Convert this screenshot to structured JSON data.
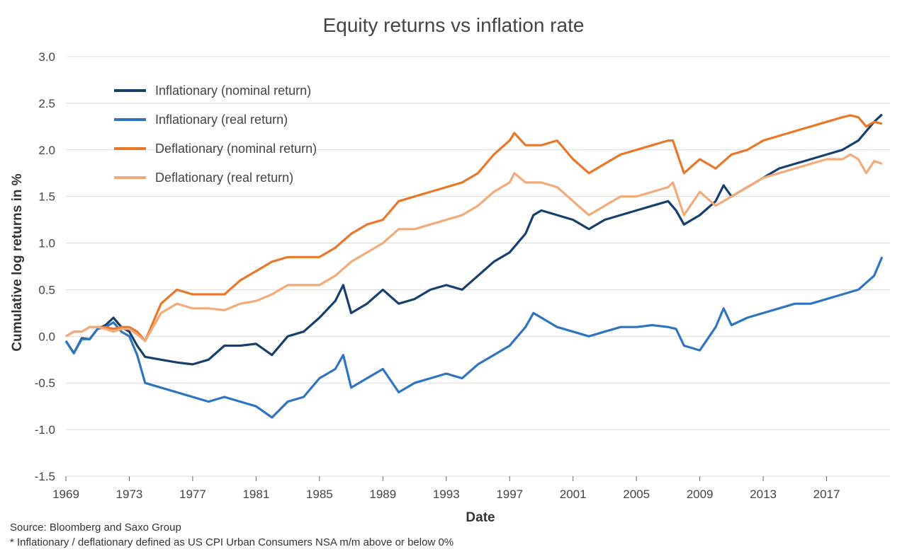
{
  "chart_data": {
    "type": "line",
    "title": "Equity returns vs inflation rate",
    "xlabel": "Date",
    "ylabel": "Cumulative log returns in %",
    "xlim": [
      1969,
      2021
    ],
    "ylim": [
      -1.5,
      3.0
    ],
    "x_ticks": [
      "1969",
      "1973",
      "1977",
      "1981",
      "1985",
      "1989",
      "1993",
      "1997",
      "2001",
      "2005",
      "2009",
      "2013",
      "2017"
    ],
    "y_ticks": [
      "-1.5",
      "-1.0",
      "-0.5",
      "0.0",
      "0.5",
      "1.0",
      "1.5",
      "2.0",
      "2.5",
      "3.0"
    ],
    "grid": "horizontal",
    "legend_position": "top-left",
    "series": [
      {
        "name": "Inflationary (nominal return)",
        "color": "#163f6e",
        "x": [
          1969,
          1969.5,
          1970,
          1970.5,
          1971,
          1971.5,
          1972,
          1972.5,
          1973,
          1973.5,
          1974,
          1975,
          1976,
          1977,
          1978,
          1979,
          1980,
          1981,
          1982,
          1983,
          1984,
          1985,
          1986,
          1986.5,
          1987,
          1988,
          1989,
          1990,
          1991,
          1992,
          1993,
          1994,
          1995,
          1996,
          1997,
          1998,
          1998.5,
          1999,
          2000,
          2001,
          2002,
          2003,
          2004,
          2005,
          2006,
          2007,
          2007.5,
          2008,
          2009,
          2010,
          2010.5,
          2011,
          2012,
          2013,
          2014,
          2015,
          2016,
          2017,
          2018,
          2019,
          2020,
          2020.5
        ],
        "values": [
          -0.05,
          -0.18,
          -0.02,
          -0.03,
          0.08,
          0.12,
          0.2,
          0.1,
          0.05,
          -0.1,
          -0.22,
          -0.25,
          -0.28,
          -0.3,
          -0.25,
          -0.1,
          -0.1,
          -0.08,
          -0.2,
          0.0,
          0.05,
          0.2,
          0.38,
          0.55,
          0.25,
          0.35,
          0.5,
          0.35,
          0.4,
          0.5,
          0.55,
          0.5,
          0.65,
          0.8,
          0.9,
          1.1,
          1.3,
          1.35,
          1.3,
          1.25,
          1.15,
          1.25,
          1.3,
          1.35,
          1.4,
          1.45,
          1.35,
          1.2,
          1.3,
          1.45,
          1.62,
          1.5,
          1.6,
          1.7,
          1.8,
          1.85,
          1.9,
          1.95,
          2.0,
          2.1,
          2.3,
          2.38
        ]
      },
      {
        "name": "Inflationary (real return)",
        "color": "#2e74c0",
        "x": [
          1969,
          1969.5,
          1970,
          1970.5,
          1971,
          1971.5,
          1972,
          1972.5,
          1973,
          1973.5,
          1974,
          1975,
          1976,
          1977,
          1978,
          1979,
          1980,
          1981,
          1982,
          1983,
          1984,
          1985,
          1986,
          1986.5,
          1987,
          1988,
          1989,
          1990,
          1991,
          1992,
          1993,
          1994,
          1995,
          1996,
          1997,
          1998,
          1998.5,
          1999,
          2000,
          2001,
          2002,
          2003,
          2004,
          2005,
          2006,
          2007,
          2007.5,
          2008,
          2009,
          2010,
          2010.5,
          2011,
          2012,
          2013,
          2014,
          2015,
          2016,
          2017,
          2018,
          2019,
          2020,
          2020.5
        ],
        "values": [
          -0.05,
          -0.18,
          -0.03,
          -0.03,
          0.08,
          0.1,
          0.15,
          0.05,
          0.0,
          -0.2,
          -0.5,
          -0.55,
          -0.6,
          -0.65,
          -0.7,
          -0.65,
          -0.7,
          -0.75,
          -0.87,
          -0.7,
          -0.65,
          -0.45,
          -0.35,
          -0.2,
          -0.55,
          -0.45,
          -0.35,
          -0.6,
          -0.5,
          -0.45,
          -0.4,
          -0.45,
          -0.3,
          -0.2,
          -0.1,
          0.1,
          0.25,
          0.2,
          0.1,
          0.05,
          0.0,
          0.05,
          0.1,
          0.1,
          0.12,
          0.1,
          0.08,
          -0.1,
          -0.15,
          0.1,
          0.3,
          0.12,
          0.2,
          0.25,
          0.3,
          0.35,
          0.35,
          0.4,
          0.45,
          0.5,
          0.65,
          0.85
        ]
      },
      {
        "name": "Deflationary (nominal return)",
        "color": "#e8772a",
        "x": [
          1969,
          1969.5,
          1970,
          1970.5,
          1971,
          1971.5,
          1972,
          1972.5,
          1973,
          1973.5,
          1974,
          1975,
          1976,
          1977,
          1978,
          1979,
          1980,
          1981,
          1982,
          1983,
          1984,
          1985,
          1986,
          1987,
          1988,
          1989,
          1990,
          1991,
          1992,
          1993,
          1994,
          1995,
          1996,
          1997,
          1997.3,
          1998,
          1999,
          2000,
          2001,
          2002,
          2003,
          2004,
          2005,
          2006,
          2007,
          2007.3,
          2007.7,
          2008,
          2009,
          2010,
          2011,
          2012,
          2013,
          2014,
          2015,
          2016,
          2017,
          2018,
          2018.5,
          2019,
          2019.5,
          2020,
          2020.5
        ],
        "values": [
          0.0,
          0.05,
          0.05,
          0.1,
          0.1,
          0.1,
          0.08,
          0.1,
          0.1,
          0.05,
          -0.05,
          0.35,
          0.5,
          0.45,
          0.45,
          0.45,
          0.6,
          0.7,
          0.8,
          0.85,
          0.85,
          0.85,
          0.95,
          1.1,
          1.2,
          1.25,
          1.45,
          1.5,
          1.55,
          1.6,
          1.65,
          1.75,
          1.95,
          2.1,
          2.18,
          2.05,
          2.05,
          2.1,
          1.9,
          1.75,
          1.85,
          1.95,
          2.0,
          2.05,
          2.1,
          2.1,
          1.9,
          1.75,
          1.9,
          1.8,
          1.95,
          2.0,
          2.1,
          2.15,
          2.2,
          2.25,
          2.3,
          2.35,
          2.37,
          2.35,
          2.25,
          2.3,
          2.28
        ]
      },
      {
        "name": "Deflationary (real return)",
        "color": "#f2ab78",
        "x": [
          1969,
          1969.5,
          1970,
          1970.5,
          1971,
          1971.5,
          1972,
          1972.5,
          1973,
          1973.5,
          1974,
          1975,
          1976,
          1977,
          1978,
          1979,
          1980,
          1981,
          1982,
          1983,
          1984,
          1985,
          1986,
          1987,
          1988,
          1989,
          1990,
          1991,
          1992,
          1993,
          1994,
          1995,
          1996,
          1997,
          1997.3,
          1998,
          1999,
          2000,
          2001,
          2002,
          2003,
          2004,
          2005,
          2006,
          2007,
          2007.3,
          2007.7,
          2008,
          2009,
          2010,
          2011,
          2012,
          2013,
          2014,
          2015,
          2016,
          2017,
          2018,
          2018.5,
          2019,
          2019.5,
          2020,
          2020.5
        ],
        "values": [
          0.0,
          0.05,
          0.05,
          0.1,
          0.1,
          0.08,
          0.05,
          0.08,
          0.08,
          0.02,
          -0.05,
          0.25,
          0.35,
          0.3,
          0.3,
          0.28,
          0.35,
          0.38,
          0.45,
          0.55,
          0.55,
          0.55,
          0.65,
          0.8,
          0.9,
          1.0,
          1.15,
          1.15,
          1.2,
          1.25,
          1.3,
          1.4,
          1.55,
          1.65,
          1.75,
          1.65,
          1.65,
          1.6,
          1.45,
          1.3,
          1.4,
          1.5,
          1.5,
          1.55,
          1.6,
          1.65,
          1.45,
          1.3,
          1.55,
          1.4,
          1.5,
          1.6,
          1.7,
          1.75,
          1.8,
          1.85,
          1.9,
          1.9,
          1.95,
          1.9,
          1.75,
          1.88,
          1.85
        ]
      }
    ]
  },
  "footnotes": {
    "source": "Source: Bloomberg and Saxo Group",
    "definition": "* Inflationary / deflationary defined as US CPI Urban Consumers NSA m/m above or below 0%"
  }
}
